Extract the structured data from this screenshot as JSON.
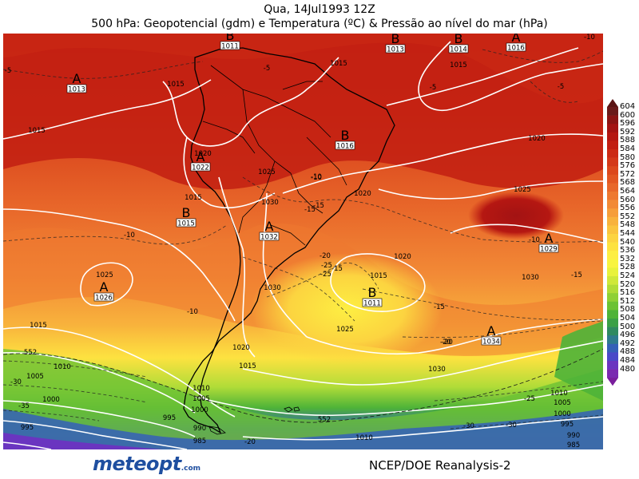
{
  "header": {
    "date_line": "Qua, 14Jul1993 12Z",
    "title": "500 hPa: Geopotencial (gdm) e Temperatura (ºC) & Pressão ao nível do mar (hPa)"
  },
  "legend": {
    "levels": [
      "604",
      "600",
      "596",
      "592",
      "588",
      "584",
      "580",
      "576",
      "572",
      "568",
      "564",
      "560",
      "556",
      "552",
      "548",
      "544",
      "540",
      "536",
      "532",
      "528",
      "524",
      "520",
      "516",
      "512",
      "508",
      "504",
      "500",
      "496",
      "492",
      "488",
      "484",
      "480"
    ],
    "colors": [
      "#6a1a1a",
      "#8a1414",
      "#a31313",
      "#b51712",
      "#c21e12",
      "#cc2a14",
      "#d43818",
      "#dc481c",
      "#e25722",
      "#e8672a",
      "#ee7830",
      "#f28a36",
      "#f69e3a",
      "#f8b23c",
      "#fac43e",
      "#fcd440",
      "#fde240",
      "#fdee42",
      "#f8f440",
      "#e8f23c",
      "#cfe83a",
      "#b0dc38",
      "#8fd036",
      "#6cc234",
      "#4eb338",
      "#3aa046",
      "#2f8a60",
      "#2f7a8e",
      "#3560b8",
      "#4a49c8",
      "#6a35c0",
      "#7a2ab0"
    ],
    "top_arrow_color": "#5a1414",
    "bottom_arrow_color": "#7a1e9c"
  },
  "centers": [
    {
      "type": "B",
      "value": "1011"
    },
    {
      "type": "B",
      "value": "1013"
    },
    {
      "type": "B",
      "value": "1014"
    },
    {
      "type": "A",
      "value": "1016"
    },
    {
      "type": "A",
      "value": "1013"
    },
    {
      "type": "B",
      "value": "1016"
    },
    {
      "type": "A",
      "value": "1022"
    },
    {
      "type": "B",
      "value": "1015"
    },
    {
      "type": "A",
      "value": "1032"
    },
    {
      "type": "A",
      "value": "1026"
    },
    {
      "type": "A",
      "value": "1029"
    },
    {
      "type": "B",
      "value": "1011"
    },
    {
      "type": "A",
      "value": "1034"
    }
  ],
  "isobar_labels": [
    "1015",
    "1015",
    "1015",
    "1015",
    "1020",
    "1020",
    "1020",
    "1020",
    "1025",
    "1025",
    "1025",
    "1030",
    "1030",
    "1030",
    "1015",
    "1010",
    "1005",
    "1000",
    "995",
    "990",
    "985",
    "1020",
    "1025",
    "1030",
    "1015",
    "1010",
    "1005",
    "1000",
    "995",
    "990",
    "985",
    "1015",
    "1010",
    "1005",
    "1000",
    "995",
    "1015",
    "1010"
  ],
  "temperature_labels": [
    "-10",
    "-5",
    "-5",
    "-5",
    "-5",
    "-10",
    "-10",
    "-15",
    "-20",
    "-25",
    "-10",
    "-10",
    "-15",
    "-15",
    "-15",
    "-20",
    "-25",
    "-30",
    "-30",
    "-35",
    "-25",
    "-30",
    "-20",
    "-20",
    "-10",
    "-15"
  ],
  "height_labels": [
    "552",
    "552"
  ],
  "footer": {
    "logo_text": "meteopt",
    "logo_suffix": ".com",
    "credit": "NCEP/DOE Reanalysis-2"
  }
}
